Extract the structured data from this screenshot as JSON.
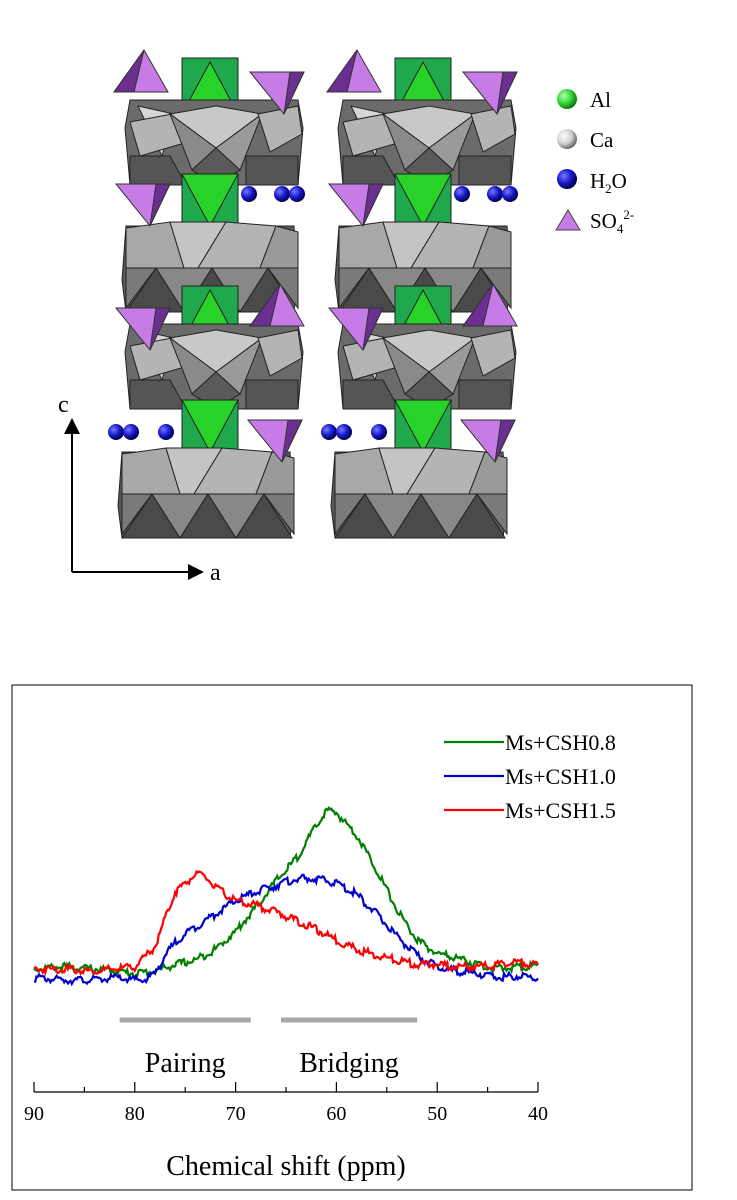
{
  "structure": {
    "legend": [
      {
        "label": "Al",
        "kind": "sphere",
        "color": "#2fd22f"
      },
      {
        "label": "Ca",
        "kind": "sphere",
        "color": "#d9d9d9"
      },
      {
        "label": "H",
        "sub": "2",
        "tail": "O",
        "kind": "sphere",
        "color": "#1a1acc"
      },
      {
        "label": "SO",
        "sub": "4",
        "sup": "2-",
        "kind": "triangle",
        "color": "#c77be6"
      }
    ],
    "axes": {
      "vertical": "c",
      "horizontal": "a"
    }
  },
  "chart_data": {
    "type": "line",
    "xlabel": "Chemical shift (ppm)",
    "ylabel": "",
    "xlim": [
      90,
      40
    ],
    "x_reversed": true,
    "xticks": [
      90,
      80,
      70,
      60,
      50,
      40
    ],
    "y_axis_shown": false,
    "grid": false,
    "legend_position": "top-right",
    "series": [
      {
        "name": "Ms+CSH0.8",
        "color": "#008000",
        "points": [
          [
            90,
            0.05
          ],
          [
            87,
            0.06
          ],
          [
            84,
            0.05
          ],
          [
            82,
            0.04
          ],
          [
            80,
            0.03
          ],
          [
            78,
            0.04
          ],
          [
            76,
            0.07
          ],
          [
            74,
            0.09
          ],
          [
            72,
            0.14
          ],
          [
            70,
            0.22
          ],
          [
            68,
            0.33
          ],
          [
            66,
            0.45
          ],
          [
            64,
            0.55
          ],
          [
            62,
            0.7
          ],
          [
            61,
            0.77
          ],
          [
            60,
            0.76
          ],
          [
            58,
            0.66
          ],
          [
            56,
            0.5
          ],
          [
            54,
            0.32
          ],
          [
            52,
            0.18
          ],
          [
            50,
            0.12
          ],
          [
            48,
            0.1
          ],
          [
            46,
            0.07
          ],
          [
            44,
            0.05
          ],
          [
            42,
            0.06
          ],
          [
            40,
            0.06
          ]
        ]
      },
      {
        "name": "Ms+CSH1.0",
        "color": "#0000cc",
        "points": [
          [
            90,
            0.01
          ],
          [
            87,
            0.0
          ],
          [
            84,
            0.0
          ],
          [
            82,
            0.01
          ],
          [
            80,
            0.0
          ],
          [
            79,
            0.0
          ],
          [
            78,
            0.03
          ],
          [
            77,
            0.11
          ],
          [
            76,
            0.17
          ],
          [
            75,
            0.21
          ],
          [
            74,
            0.24
          ],
          [
            72,
            0.3
          ],
          [
            70,
            0.36
          ],
          [
            68,
            0.4
          ],
          [
            66,
            0.43
          ],
          [
            64,
            0.46
          ],
          [
            62,
            0.46
          ],
          [
            60,
            0.44
          ],
          [
            58,
            0.39
          ],
          [
            56,
            0.3
          ],
          [
            54,
            0.2
          ],
          [
            52,
            0.11
          ],
          [
            50,
            0.06
          ],
          [
            48,
            0.04
          ],
          [
            46,
            0.03
          ],
          [
            44,
            0.01
          ],
          [
            42,
            0.02
          ],
          [
            40,
            0.01
          ]
        ]
      },
      {
        "name": "Ms+CSH1.5",
        "color": "#ff0000",
        "points": [
          [
            90,
            0.05
          ],
          [
            87,
            0.05
          ],
          [
            84,
            0.04
          ],
          [
            82,
            0.05
          ],
          [
            80,
            0.06
          ],
          [
            78,
            0.15
          ],
          [
            77,
            0.28
          ],
          [
            76,
            0.4
          ],
          [
            74,
            0.48
          ],
          [
            73,
            0.47
          ],
          [
            72,
            0.42
          ],
          [
            70,
            0.36
          ],
          [
            68,
            0.34
          ],
          [
            66,
            0.31
          ],
          [
            64,
            0.27
          ],
          [
            62,
            0.23
          ],
          [
            60,
            0.18
          ],
          [
            58,
            0.14
          ],
          [
            56,
            0.11
          ],
          [
            54,
            0.09
          ],
          [
            52,
            0.07
          ],
          [
            50,
            0.07
          ],
          [
            48,
            0.06
          ],
          [
            46,
            0.06
          ],
          [
            44,
            0.07
          ],
          [
            42,
            0.08
          ],
          [
            40,
            0.07
          ]
        ]
      }
    ],
    "annotations": [
      {
        "text": "Pairing",
        "x_from": 81.5,
        "x_to": 68.5,
        "bar_color": "#a6a6a6"
      },
      {
        "text": "Bridging",
        "x_from": 65.5,
        "x_to": 52,
        "bar_color": "#a6a6a6"
      }
    ]
  }
}
